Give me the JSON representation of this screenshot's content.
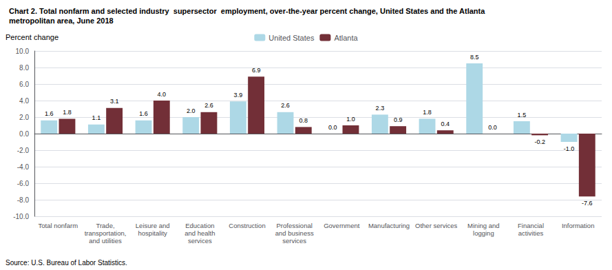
{
  "chart_data": {
    "type": "bar",
    "title": "Chart 2. Total nonfarm and selected industry  supersector  employment, over-the-year percent change, United States and the Atlanta\nmetropolitan area, June 2018",
    "ylabel": "Percent change",
    "source": "Source: U.S. Bureau of Labor Statistics.",
    "categories": [
      "Total nonfarm",
      "Trade,\ntransportation,\nand utilities",
      "Leisure and\nhospitality",
      "Education\nand health\nservices",
      "Construction",
      "Professional\nand business\nservices",
      "Government",
      "Manufacturing",
      "Other services",
      "Mining and\nlogging",
      "Financial\nactivities",
      "Information"
    ],
    "series": [
      {
        "name": "United States",
        "color": "#add8e6",
        "values": [
          1.6,
          1.1,
          1.6,
          2.0,
          3.9,
          2.6,
          0.0,
          2.3,
          1.8,
          8.5,
          1.5,
          -1.0
        ],
        "value_labels": [
          "1.6",
          "1.1",
          "1.6",
          "2.0",
          "3.9",
          "2.6",
          "0.0",
          "2.3",
          "1.8",
          "8.5",
          "1.5",
          "-1.0"
        ]
      },
      {
        "name": "Atlanta",
        "color": "#722f37",
        "values": [
          1.8,
          3.1,
          4.0,
          2.6,
          6.9,
          0.8,
          1.0,
          0.9,
          0.4,
          0.0,
          -0.2,
          -7.6
        ],
        "value_labels": [
          "1.8",
          "3.1",
          "4.0",
          "2.6",
          "6.9",
          "0.8",
          "1.0",
          "0.9",
          "0.4",
          "0.0",
          "-0.2",
          "-7.6"
        ]
      }
    ],
    "ylim": [
      -10.0,
      10.0
    ],
    "yticks": [
      {
        "value": -10,
        "label": "-10.0"
      },
      {
        "value": -8,
        "label": "-8.0"
      },
      {
        "value": -6,
        "label": "-6.0"
      },
      {
        "value": -4,
        "label": "-4.0"
      },
      {
        "value": -2,
        "label": "-2.0"
      },
      {
        "value": 0,
        "label": "0.0"
      },
      {
        "value": 2,
        "label": "2.0"
      },
      {
        "value": 4,
        "label": "4.0"
      },
      {
        "value": 6,
        "label": "6.0"
      },
      {
        "value": 8,
        "label": "8.0"
      },
      {
        "value": 10,
        "label": "10.0"
      }
    ],
    "grid": true,
    "legend": "top",
    "data_labels": true
  }
}
